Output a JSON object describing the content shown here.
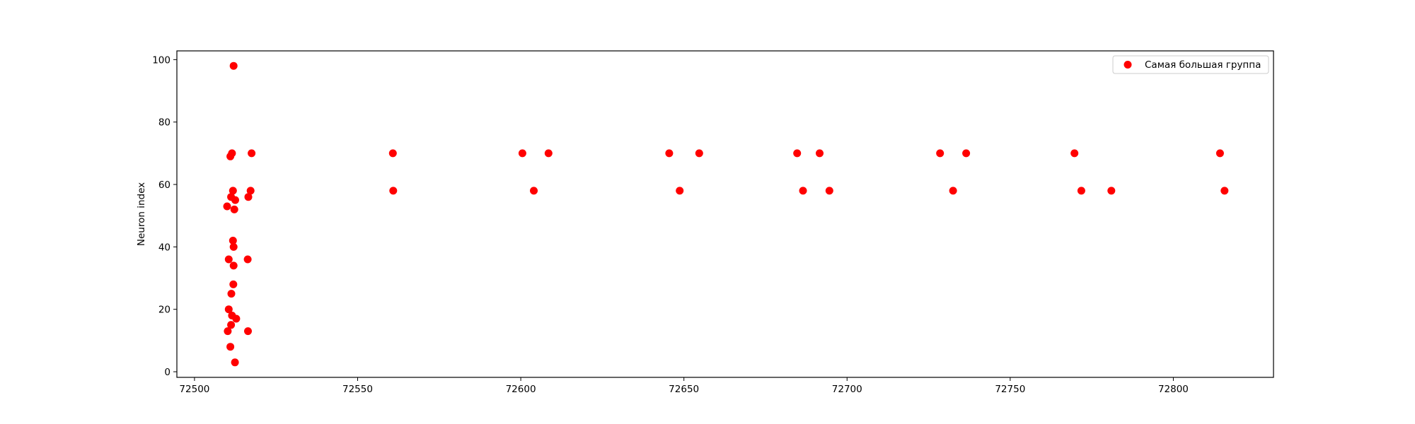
{
  "chart_data": {
    "type": "scatter",
    "title": "",
    "xlabel": "",
    "ylabel": "Neuron index",
    "xlim": [
      72494.6,
      72830.7
    ],
    "ylim": [
      -1.8,
      102.8
    ],
    "xticks": [
      72500,
      72550,
      72600,
      72650,
      72700,
      72750,
      72800
    ],
    "yticks": [
      0,
      20,
      40,
      60,
      80,
      100
    ],
    "grid": false,
    "legend_position": "top-right",
    "series": [
      {
        "name": "Самая большая группа",
        "color": "#ff0000",
        "marker": "circle",
        "points": [
          [
            72512.0,
            98
          ],
          [
            72511.5,
            70
          ],
          [
            72511.0,
            69
          ],
          [
            72517.5,
            70
          ],
          [
            72511.8,
            58
          ],
          [
            72517.2,
            58
          ],
          [
            72511.2,
            56
          ],
          [
            72512.5,
            55
          ],
          [
            72516.5,
            56
          ],
          [
            72510.0,
            53
          ],
          [
            72512.2,
            52
          ],
          [
            72511.8,
            42
          ],
          [
            72512.0,
            40
          ],
          [
            72510.5,
            36
          ],
          [
            72516.3,
            36
          ],
          [
            72512.0,
            34
          ],
          [
            72511.9,
            28
          ],
          [
            72511.3,
            25
          ],
          [
            72510.5,
            20
          ],
          [
            72511.5,
            18
          ],
          [
            72512.8,
            17
          ],
          [
            72511.2,
            15
          ],
          [
            72510.2,
            13
          ],
          [
            72516.4,
            13
          ],
          [
            72511.0,
            8
          ],
          [
            72512.4,
            3
          ],
          [
            72560.8,
            70
          ],
          [
            72560.9,
            58
          ],
          [
            72600.5,
            70
          ],
          [
            72608.5,
            70
          ],
          [
            72604.0,
            58
          ],
          [
            72645.5,
            70
          ],
          [
            72654.7,
            70
          ],
          [
            72648.7,
            58
          ],
          [
            72684.7,
            70
          ],
          [
            72691.6,
            70
          ],
          [
            72686.5,
            58
          ],
          [
            72694.6,
            58
          ],
          [
            72728.5,
            70
          ],
          [
            72736.5,
            70
          ],
          [
            72732.5,
            58
          ],
          [
            72769.7,
            70
          ],
          [
            72771.8,
            58
          ],
          [
            72781.0,
            58
          ],
          [
            72814.3,
            70
          ],
          [
            72815.7,
            58
          ]
        ]
      }
    ]
  }
}
